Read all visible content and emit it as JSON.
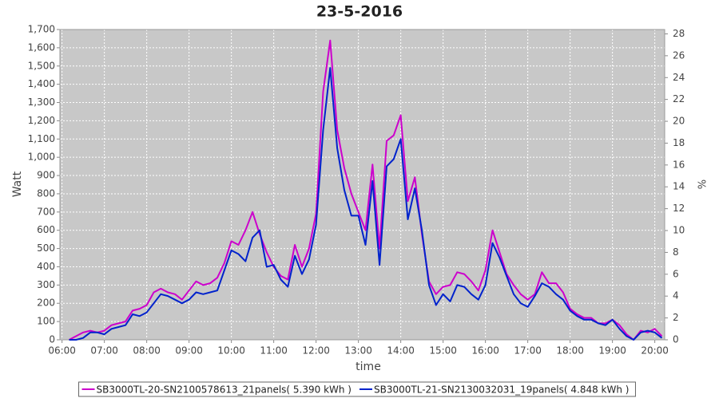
{
  "chart_data": {
    "type": "line",
    "title": "23-5-2016",
    "x_label": "time",
    "y_label": "Watt",
    "y2_label": "%",
    "x": [
      "06:10",
      "06:20",
      "06:30",
      "06:40",
      "06:50",
      "07:00",
      "07:10",
      "07:20",
      "07:30",
      "07:40",
      "07:50",
      "08:00",
      "08:10",
      "08:20",
      "08:30",
      "08:40",
      "08:50",
      "09:00",
      "09:10",
      "09:20",
      "09:30",
      "09:40",
      "09:50",
      "10:00",
      "10:10",
      "10:20",
      "10:30",
      "10:40",
      "10:50",
      "11:00",
      "11:10",
      "11:20",
      "11:30",
      "11:40",
      "11:50",
      "12:00",
      "12:10",
      "12:20",
      "12:30",
      "12:40",
      "12:50",
      "13:00",
      "13:10",
      "13:20",
      "13:30",
      "13:40",
      "13:50",
      "14:00",
      "14:10",
      "14:20",
      "14:30",
      "14:40",
      "14:50",
      "15:00",
      "15:10",
      "15:20",
      "15:30",
      "15:40",
      "15:50",
      "16:00",
      "16:10",
      "16:20",
      "16:30",
      "16:40",
      "16:50",
      "17:00",
      "17:10",
      "17:20",
      "17:30",
      "17:40",
      "17:50",
      "18:00",
      "18:10",
      "18:20",
      "18:30",
      "18:40",
      "18:50",
      "19:00",
      "19:10",
      "19:20",
      "19:30",
      "19:40",
      "19:50",
      "20:00",
      "20:10"
    ],
    "series": [
      {
        "name": "SB3000TL-20-SN2100578613_21panels( 5.390 kWh )",
        "color": "#cc00cc",
        "values": [
          0,
          20,
          40,
          50,
          40,
          50,
          80,
          90,
          100,
          160,
          170,
          190,
          260,
          280,
          260,
          250,
          220,
          270,
          320,
          300,
          310,
          340,
          420,
          540,
          520,
          600,
          700,
          580,
          480,
          400,
          350,
          330,
          520,
          400,
          500,
          690,
          1360,
          1640,
          1150,
          940,
          800,
          700,
          600,
          960,
          500,
          1090,
          1120,
          1230,
          760,
          890,
          580,
          320,
          250,
          290,
          300,
          370,
          360,
          320,
          270,
          380,
          600,
          480,
          360,
          300,
          250,
          220,
          250,
          370,
          310,
          310,
          260,
          170,
          140,
          120,
          120,
          90,
          90,
          110,
          80,
          30,
          0,
          50,
          40,
          60,
          20
        ]
      },
      {
        "name": "SB3000TL-21-SN2130032031_19panels( 4.848 kWh )",
        "color": "#0022cc",
        "values": [
          0,
          0,
          10,
          40,
          40,
          30,
          60,
          70,
          80,
          140,
          130,
          150,
          200,
          250,
          240,
          220,
          200,
          220,
          260,
          250,
          260,
          270,
          380,
          490,
          470,
          430,
          560,
          600,
          400,
          410,
          330,
          290,
          460,
          360,
          440,
          630,
          1150,
          1490,
          1050,
          820,
          680,
          680,
          520,
          870,
          410,
          950,
          990,
          1100,
          660,
          830,
          600,
          300,
          190,
          250,
          210,
          300,
          290,
          250,
          220,
          300,
          530,
          450,
          350,
          250,
          200,
          180,
          240,
          310,
          290,
          250,
          220,
          160,
          130,
          110,
          110,
          90,
          80,
          110,
          60,
          20,
          0,
          40,
          50,
          40,
          10
        ]
      }
    ],
    "xlim": [
      "05:57",
      "20:14"
    ],
    "xticks": [
      "06:00",
      "07:00",
      "08:00",
      "09:00",
      "10:00",
      "11:00",
      "12:00",
      "13:00",
      "14:00",
      "15:00",
      "16:00",
      "17:00",
      "18:00",
      "19:00",
      "20:00"
    ],
    "ylim": [
      0,
      1700
    ],
    "yticks": [
      0,
      100,
      200,
      300,
      400,
      500,
      600,
      700,
      800,
      900,
      {
        "value": 1000,
        "label": "1,000"
      },
      {
        "value": 1100,
        "label": "1,100"
      },
      {
        "value": 1200,
        "label": "1,200"
      },
      {
        "value": 1300,
        "label": "1,300"
      },
      {
        "value": 1400,
        "label": "1,400"
      },
      {
        "value": 1500,
        "label": "1,500"
      },
      {
        "value": 1600,
        "label": "1,600"
      },
      {
        "value": 1700,
        "label": "1,700"
      }
    ],
    "y2lim": [
      0,
      28.4
    ],
    "y2ticks": [
      0,
      2,
      4,
      6,
      8,
      10,
      12,
      14,
      16,
      18,
      20,
      22,
      24,
      26,
      28
    ],
    "grid": true,
    "legend": "bottom"
  }
}
